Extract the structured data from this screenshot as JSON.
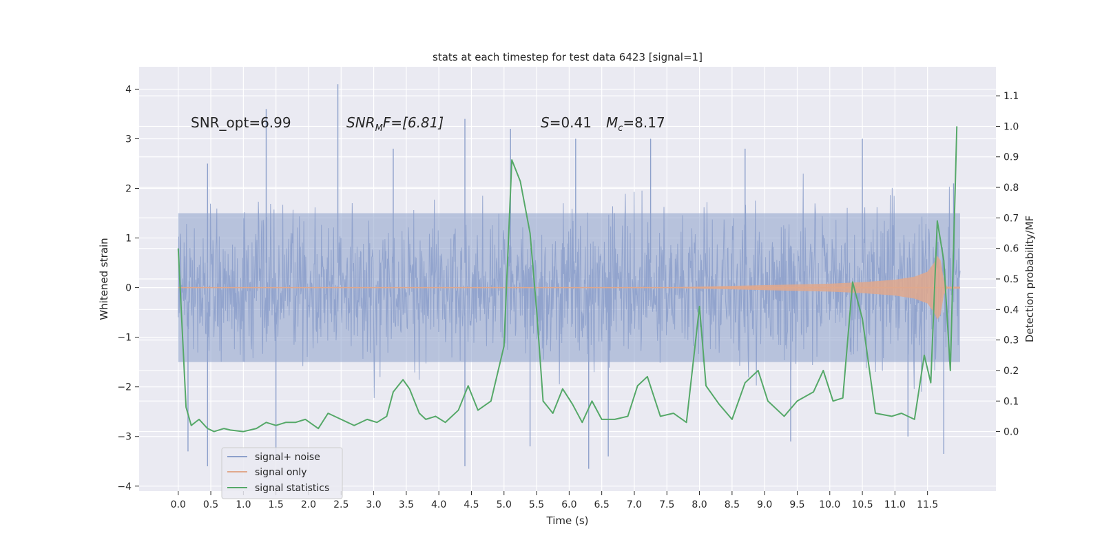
{
  "chart_data": {
    "type": "line",
    "title": "stats at each timestep for test data 6423 [signal=1]",
    "xlabel": "Time (s)",
    "ylabel_left": "Whitened strain",
    "ylabel_right": "Detection probability/MF",
    "xlim": [
      -0.6,
      12.55
    ],
    "ylim_left": [
      -4.1,
      4.45
    ],
    "ylim_right": [
      -0.195,
      1.195
    ],
    "x_ticks": [
      "0.0",
      "0.5",
      "1.0",
      "1.5",
      "2.0",
      "2.5",
      "3.0",
      "3.5",
      "4.0",
      "4.5",
      "5.0",
      "5.5",
      "6.0",
      "6.5",
      "7.0",
      "7.5",
      "8.0",
      "8.5",
      "9.0",
      "9.5",
      "10.0",
      "10.5",
      "11.0",
      "11.5"
    ],
    "y_ticks_left": [
      "4",
      "3",
      "2",
      "1",
      "0",
      "−1",
      "−2",
      "−3",
      "−4"
    ],
    "y_ticks_right": [
      "1.1",
      "1.0",
      "0.9",
      "0.8",
      "0.7",
      "0.6",
      "0.5",
      "0.4",
      "0.3",
      "0.2",
      "0.1",
      "0.0"
    ],
    "grid": true,
    "legend_position": "lower-left",
    "annotations": {
      "snr_opt": "SNR_opt=6.99",
      "snr_mf_label": "SNR",
      "snr_mf_sub": "M",
      "snr_mf_rest": "F=[6.81]",
      "s_label": "S",
      "s_value": "=0.41",
      "mc_label": "M",
      "mc_sub": "c",
      "mc_value": "=8.17"
    },
    "noise_envelope": {
      "x": [
        0.0,
        12.0
      ],
      "typical_low": -1.5,
      "typical_high": 1.5,
      "peak_high": [
        [
          0.45,
          2.5
        ],
        [
          1.35,
          3.6
        ],
        [
          2.45,
          4.1
        ],
        [
          3.3,
          2.8
        ],
        [
          4.4,
          3.4
        ],
        [
          5.1,
          3.2
        ],
        [
          6.1,
          3.0
        ],
        [
          7.25,
          3.0
        ],
        [
          8.7,
          2.8
        ],
        [
          10.5,
          3.0
        ],
        [
          11.9,
          2.1
        ]
      ],
      "peak_low": [
        [
          0.15,
          -3.3
        ],
        [
          0.45,
          -3.6
        ],
        [
          1.5,
          -3.4
        ],
        [
          4.4,
          -3.6
        ],
        [
          5.4,
          -3.2
        ],
        [
          6.3,
          -3.65
        ],
        [
          6.6,
          -3.4
        ],
        [
          9.4,
          -3.1
        ],
        [
          11.2,
          -3.0
        ],
        [
          11.75,
          -3.35
        ]
      ]
    },
    "signal_envelope": {
      "x": [
        0.0,
        7.5,
        8.0,
        9.0,
        10.0,
        10.5,
        11.0,
        11.3,
        11.5,
        11.6,
        11.65,
        11.7,
        11.75,
        11.8,
        12.0
      ],
      "amp": [
        0.0,
        0.005,
        0.02,
        0.05,
        0.08,
        0.11,
        0.16,
        0.22,
        0.32,
        0.5,
        0.64,
        0.55,
        0.15,
        0.02,
        0.02
      ]
    },
    "series": [
      {
        "name": "signal+ noise",
        "color": "#8da0cb"
      },
      {
        "name": "signal only",
        "color": "#e0a88c"
      },
      {
        "name": "signal statistics",
        "color": "#55a868",
        "x": [
          0.0,
          0.12,
          0.2,
          0.32,
          0.45,
          0.55,
          0.7,
          0.8,
          1.0,
          1.2,
          1.35,
          1.5,
          1.65,
          1.8,
          1.95,
          2.15,
          2.3,
          2.5,
          2.6,
          2.7,
          2.9,
          3.05,
          3.2,
          3.3,
          3.45,
          3.55,
          3.7,
          3.8,
          3.95,
          4.1,
          4.3,
          4.45,
          4.6,
          4.8,
          5.0,
          5.12,
          5.25,
          5.4,
          5.5,
          5.6,
          5.75,
          5.9,
          6.05,
          6.2,
          6.35,
          6.5,
          6.7,
          6.9,
          7.05,
          7.2,
          7.4,
          7.6,
          7.8,
          8.0,
          8.1,
          8.3,
          8.5,
          8.7,
          8.9,
          9.05,
          9.3,
          9.5,
          9.75,
          9.9,
          10.05,
          10.2,
          10.35,
          10.5,
          10.7,
          10.95,
          11.1,
          11.3,
          11.45,
          11.55,
          11.65,
          11.75,
          11.85,
          11.95
        ],
        "values": [
          0.6,
          0.08,
          0.02,
          0.04,
          0.01,
          0.0,
          0.01,
          0.005,
          0.0,
          0.01,
          0.03,
          0.02,
          0.03,
          0.03,
          0.04,
          0.01,
          0.06,
          0.04,
          0.03,
          0.02,
          0.04,
          0.03,
          0.05,
          0.13,
          0.17,
          0.14,
          0.06,
          0.04,
          0.05,
          0.03,
          0.07,
          0.15,
          0.07,
          0.1,
          0.28,
          0.89,
          0.82,
          0.65,
          0.4,
          0.1,
          0.06,
          0.14,
          0.09,
          0.03,
          0.1,
          0.04,
          0.04,
          0.05,
          0.15,
          0.18,
          0.05,
          0.06,
          0.03,
          0.41,
          0.15,
          0.09,
          0.04,
          0.16,
          0.2,
          0.1,
          0.05,
          0.1,
          0.13,
          0.2,
          0.1,
          0.11,
          0.49,
          0.37,
          0.06,
          0.05,
          0.06,
          0.04,
          0.25,
          0.16,
          0.69,
          0.56,
          0.2,
          1.0
        ]
      }
    ]
  }
}
